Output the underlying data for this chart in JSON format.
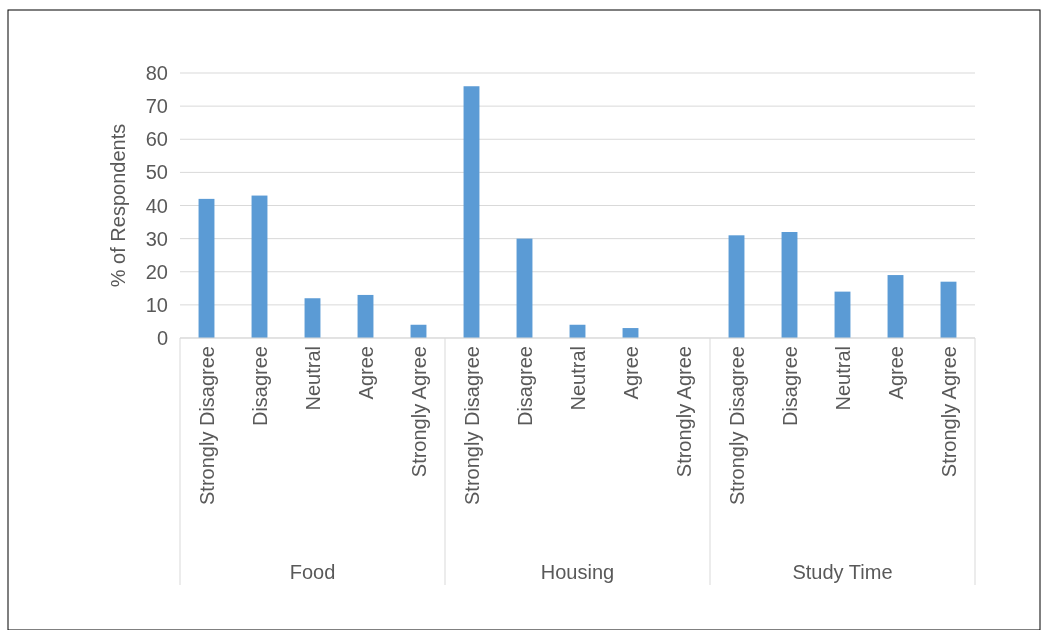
{
  "chart_data": {
    "type": "bar",
    "ylabel": "% of Respondents",
    "categories": [
      "Strongly Disagree",
      "Disagree",
      "Neutral",
      "Agree",
      "Strongly Agree",
      "Strongly Disagree",
      "Disagree",
      "Neutral",
      "Agree",
      "Strongly Agree",
      "Strongly Disagree",
      "Disagree",
      "Neutral",
      "Agree",
      "Strongly Agree"
    ],
    "values": [
      42,
      43,
      12,
      13,
      4,
      76,
      30,
      4,
      3,
      0,
      31,
      32,
      14,
      19,
      17
    ],
    "color": "#5b9bd5",
    "ylim": [
      0,
      80
    ],
    "yticks": [
      0,
      10,
      20,
      30,
      40,
      50,
      60,
      70,
      80
    ],
    "grid": "y",
    "annotations": [
      "Food",
      "Housing",
      "Study Time"
    ]
  }
}
